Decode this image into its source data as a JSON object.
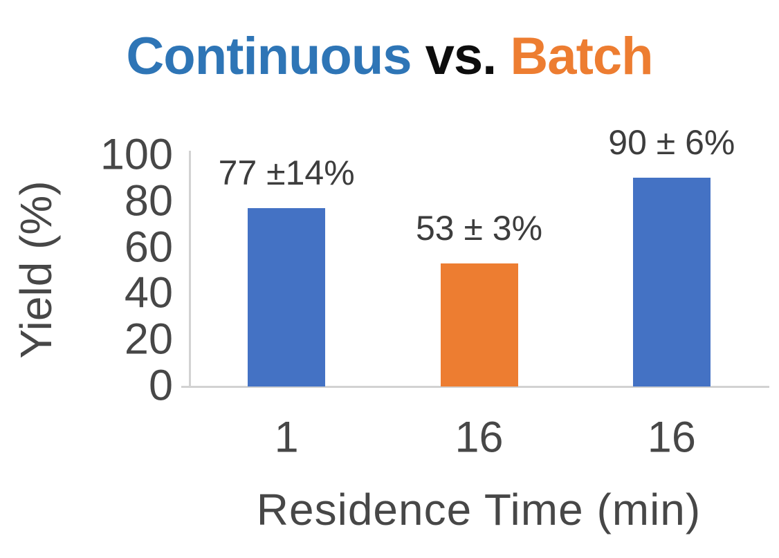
{
  "title": {
    "full_text": "Continuous vs. Batch",
    "parts": [
      {
        "text": "Continuous",
        "color": "#2E75B6"
      },
      {
        "text": " vs. ",
        "color": "#0D0D0D"
      },
      {
        "text": "Batch",
        "color": "#ED7D31"
      }
    ]
  },
  "chart_data": {
    "type": "bar",
    "title": "Continuous vs. Batch",
    "categories": [
      "1",
      "16",
      "16"
    ],
    "values": [
      77,
      53,
      90
    ],
    "error_margins": [
      14,
      3,
      6
    ],
    "bar_labels": [
      "77 ±14%",
      "53 ± 3%",
      "90 ± 6%"
    ],
    "bar_colors": [
      "#4472C4",
      "#ED7D31",
      "#4472C4"
    ],
    "color_key": {
      "#4472C4": "Continuous",
      "#ED7D31": "Batch"
    },
    "xlabel": "Residence Time (min)",
    "ylabel": "Yield (%)",
    "ylim": [
      0,
      100
    ],
    "yticks": [
      0,
      20,
      40,
      60,
      80,
      100
    ],
    "grid": false,
    "legend_position": "none"
  },
  "colors": {
    "bar_blue": "#4472C4",
    "bar_orange": "#ED7D31",
    "axis_line": "#D2D2D2",
    "tick_text": "#474747",
    "data_label_text": "#3D3D3D",
    "axis_title_text": "#474747"
  }
}
